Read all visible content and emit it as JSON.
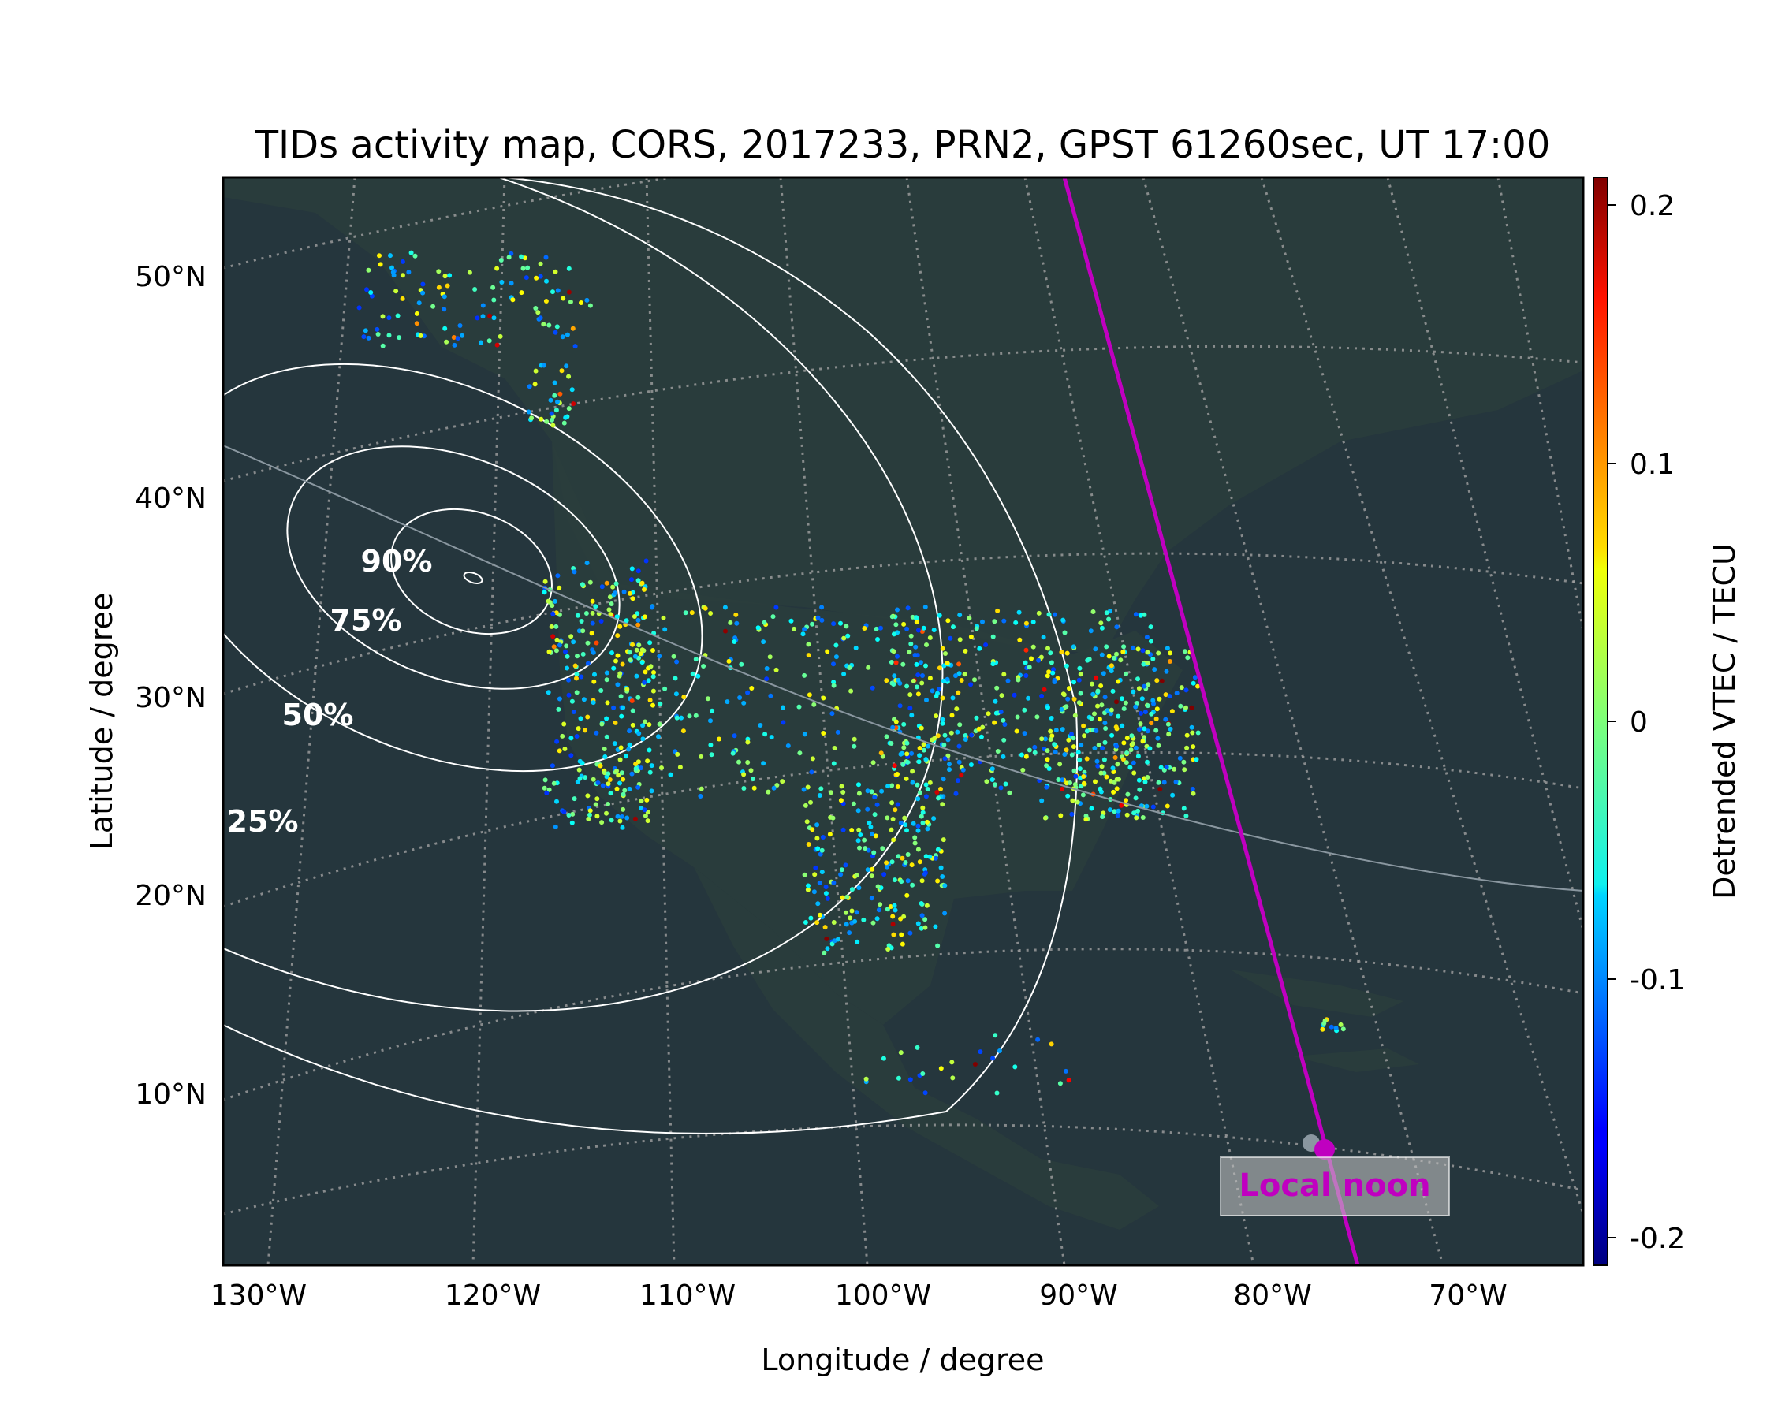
{
  "title": "TIDs activity map, CORS, 2017233, PRN2, GPST 61260sec, UT 17:00",
  "x_axis": {
    "label": "Longitude / degree",
    "ticks": [
      "130°W",
      "120°W",
      "110°W",
      "100°W",
      "90°W",
      "80°W",
      "70°W"
    ]
  },
  "y_axis": {
    "label": "Latitude / degree",
    "ticks": [
      "50°N",
      "40°N",
      "30°N",
      "20°N",
      "10°N"
    ]
  },
  "colorbar": {
    "label": "Detrended VTEC / TECU",
    "ticks": [
      "0.2",
      "0.1",
      "0",
      "-0.1",
      "-0.2"
    ],
    "range": [
      -0.21,
      0.21
    ],
    "colormap": "jet"
  },
  "contours": [
    "90%",
    "75%",
    "50%",
    "25%"
  ],
  "annotation": {
    "local_noon": "Local noon"
  },
  "colors": {
    "map_background": "#25363d",
    "land": "#2a3d3c",
    "terminator": "#c000c0",
    "contour": "#ffffff",
    "graticule": "#a0a0a0"
  },
  "chart_data": {
    "type": "scatter",
    "title": "TIDs activity map, CORS, 2017233, PRN2, GPST 61260sec, UT 17:00",
    "xlabel": "Longitude / degree",
    "ylabel": "Latitude / degree",
    "clabel": "Detrended VTEC / TECU",
    "xlim": [
      -132,
      -62
    ],
    "ylim": [
      2,
      54
    ],
    "clim": [
      -0.21,
      0.21
    ],
    "contour_levels": [
      "25%",
      "50%",
      "75%",
      "90%"
    ],
    "grid": true
  }
}
